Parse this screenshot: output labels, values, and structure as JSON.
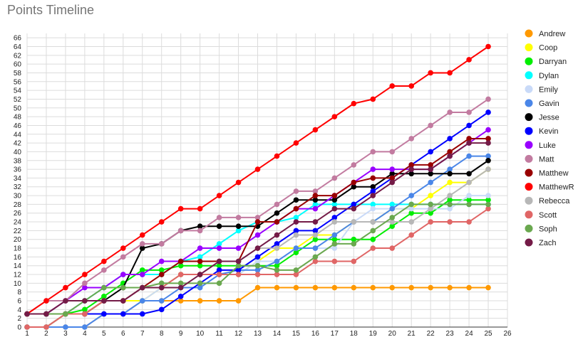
{
  "chart_data": {
    "type": "line",
    "title": "Points Timeline",
    "xlabel": "",
    "ylabel": "",
    "x": [
      1,
      2,
      3,
      4,
      5,
      6,
      7,
      8,
      9,
      10,
      11,
      12,
      13,
      14,
      15,
      16,
      17,
      18,
      19,
      20,
      21,
      22,
      23,
      24,
      25
    ],
    "xlim": [
      1,
      26
    ],
    "ylim": [
      0,
      67
    ],
    "x_ticks": [
      1,
      2,
      3,
      4,
      5,
      6,
      7,
      8,
      9,
      10,
      11,
      12,
      13,
      14,
      15,
      16,
      17,
      18,
      19,
      20,
      21,
      22,
      23,
      24,
      25,
      26
    ],
    "y_ticks": [
      0,
      2,
      4,
      6,
      8,
      10,
      12,
      14,
      16,
      18,
      20,
      22,
      24,
      26,
      28,
      30,
      32,
      34,
      36,
      38,
      40,
      42,
      44,
      46,
      48,
      50,
      52,
      54,
      56,
      58,
      60,
      62,
      64,
      66
    ],
    "grid": true,
    "legend": "right",
    "series": [
      {
        "name": "Andrew",
        "color": "#ff9900",
        "values": [
          0,
          0,
          0,
          0,
          3,
          3,
          6,
          6,
          6,
          6,
          6,
          6,
          9,
          9,
          9,
          9,
          9,
          9,
          9,
          9,
          9,
          9,
          9,
          9,
          9
        ]
      },
      {
        "name": "Coop",
        "color": "#ffff00",
        "values": [
          3,
          3,
          3,
          3,
          6,
          6,
          6,
          9,
          12,
          12,
          12,
          12,
          15,
          18,
          18,
          21,
          21,
          24,
          24,
          27,
          27,
          30,
          33,
          33,
          36
        ]
      },
      {
        "name": "Darryan",
        "color": "#00ee00",
        "values": [
          0,
          0,
          3,
          4,
          7,
          10,
          13,
          13,
          14,
          14,
          14,
          14,
          14,
          14,
          17,
          20,
          20,
          20,
          20,
          23,
          26,
          26,
          29,
          29,
          29
        ]
      },
      {
        "name": "Dylan",
        "color": "#00ffff",
        "values": [
          3,
          3,
          3,
          6,
          9,
          12,
          12,
          12,
          15,
          16,
          19,
          22,
          24,
          24,
          25,
          28,
          28,
          28,
          28,
          28,
          28,
          28,
          28,
          28,
          28
        ]
      },
      {
        "name": "Emily",
        "color": "#c9daf8",
        "values": [
          0,
          0,
          0,
          0,
          3,
          3,
          6,
          9,
          9,
          9,
          12,
          12,
          15,
          15,
          18,
          18,
          18,
          24,
          27,
          27,
          27,
          27,
          27,
          30,
          30
        ]
      },
      {
        "name": "Gavin",
        "color": "#4a86e8",
        "values": [
          0,
          0,
          0,
          0,
          3,
          3,
          6,
          6,
          9,
          9,
          12,
          13,
          13,
          15,
          18,
          18,
          21,
          24,
          24,
          27,
          30,
          33,
          36,
          39,
          39
        ]
      },
      {
        "name": "Jesse",
        "color": "#000000",
        "values": [
          3,
          3,
          3,
          3,
          6,
          9,
          18,
          19,
          22,
          23,
          23,
          23,
          23,
          26,
          29,
          29,
          29,
          32,
          32,
          35,
          35,
          35,
          35,
          35,
          38
        ]
      },
      {
        "name": "Kevin",
        "color": "#0000ff",
        "values": [
          3,
          3,
          3,
          3,
          3,
          3,
          3,
          4,
          7,
          10,
          13,
          13,
          16,
          19,
          22,
          22,
          25,
          28,
          31,
          34,
          37,
          40,
          43,
          46,
          49
        ]
      },
      {
        "name": "Luke",
        "color": "#9900ff",
        "values": [
          3,
          3,
          6,
          9,
          9,
          12,
          12,
          15,
          15,
          18,
          18,
          18,
          21,
          24,
          27,
          27,
          30,
          33,
          36,
          36,
          36,
          36,
          39,
          42,
          45
        ]
      },
      {
        "name": "Matt",
        "color": "#c27ba0",
        "values": [
          3,
          6,
          6,
          10,
          13,
          16,
          19,
          19,
          22,
          22,
          25,
          25,
          25,
          28,
          31,
          31,
          34,
          37,
          40,
          40,
          43,
          46,
          49,
          49,
          52
        ]
      },
      {
        "name": "Matthew",
        "color": "#990000",
        "values": [
          3,
          3,
          3,
          3,
          6,
          6,
          9,
          12,
          15,
          15,
          15,
          15,
          24,
          24,
          27,
          30,
          30,
          33,
          34,
          34,
          37,
          37,
          40,
          43,
          43
        ]
      },
      {
        "name": "MatthewR",
        "color": "#ff0000",
        "values": [
          3,
          6,
          9,
          12,
          15,
          18,
          21,
          24,
          27,
          27,
          30,
          33,
          36,
          39,
          42,
          45,
          48,
          51,
          52,
          55,
          55,
          58,
          58,
          61,
          64
        ]
      },
      {
        "name": "Rebecca",
        "color": "#b7b7b7",
        "values": [
          0,
          0,
          3,
          3,
          6,
          6,
          9,
          9,
          12,
          12,
          15,
          15,
          18,
          18,
          21,
          21,
          24,
          24,
          24,
          24,
          24,
          27,
          30,
          33,
          36
        ]
      },
      {
        "name": "Scott",
        "color": "#e06666",
        "values": [
          0,
          0,
          3,
          3,
          6,
          6,
          9,
          9,
          12,
          12,
          12,
          12,
          12,
          12,
          12,
          15,
          15,
          15,
          18,
          18,
          21,
          24,
          24,
          24,
          27
        ]
      },
      {
        "name": "Soph",
        "color": "#6aa84f",
        "values": [
          3,
          3,
          3,
          6,
          9,
          9,
          9,
          10,
          10,
          10,
          10,
          14,
          14,
          13,
          13,
          16,
          19,
          19,
          22,
          25,
          28,
          28,
          28,
          28,
          28
        ]
      },
      {
        "name": "Zach",
        "color": "#741b47",
        "values": [
          3,
          3,
          6,
          6,
          6,
          6,
          9,
          9,
          9,
          12,
          15,
          15,
          18,
          21,
          24,
          24,
          27,
          27,
          30,
          33,
          36,
          36,
          39,
          42,
          42
        ]
      }
    ]
  }
}
